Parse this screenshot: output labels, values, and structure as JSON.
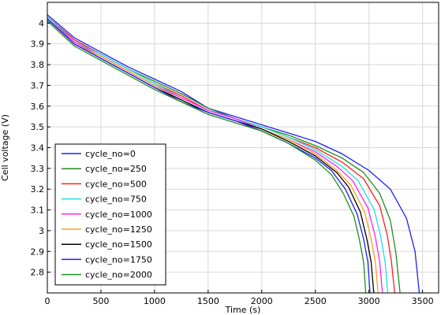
{
  "chart_data": {
    "type": "line",
    "xlabel": "Time (s)",
    "ylabel": "Cell voltage (V)",
    "xlim": [
      0,
      3650
    ],
    "ylim": [
      2.7,
      4.1
    ],
    "xticks": [
      0,
      500,
      1000,
      1500,
      2000,
      2500,
      3000,
      3500
    ],
    "yticks": [
      2.8,
      2.9,
      3.0,
      3.1,
      3.2,
      3.3,
      3.4,
      3.5,
      3.6,
      3.7,
      3.8,
      3.9,
      4.0
    ],
    "ytick_labels": [
      "2.8",
      "2.9",
      "3",
      "3.1",
      "3.2",
      "3.3",
      "3.4",
      "3.5",
      "3.6",
      "3.7",
      "3.8",
      "3.9",
      "4"
    ],
    "grid": true,
    "legend_position": "bottom-left",
    "series": [
      {
        "name": "cycle_no=0",
        "color": "#1f1fff",
        "x": [
          0,
          250,
          500,
          750,
          1000,
          1250,
          1500,
          1750,
          2000,
          2250,
          2500,
          2750,
          3000,
          3200,
          3350,
          3430,
          3470
        ],
        "y": [
          4.04,
          3.93,
          3.86,
          3.79,
          3.73,
          3.67,
          3.59,
          3.55,
          3.51,
          3.47,
          3.43,
          3.37,
          3.29,
          3.2,
          3.06,
          2.9,
          2.7
        ]
      },
      {
        "name": "cycle_no=250",
        "color": "#1e8f1e",
        "x": [
          0,
          250,
          500,
          750,
          1000,
          1250,
          1500,
          1750,
          2000,
          2250,
          2500,
          2750,
          2950,
          3100,
          3200,
          3250,
          3290
        ],
        "y": [
          4.03,
          3.92,
          3.85,
          3.78,
          3.72,
          3.66,
          3.59,
          3.54,
          3.5,
          3.46,
          3.41,
          3.35,
          3.28,
          3.18,
          3.05,
          2.9,
          2.7
        ]
      },
      {
        "name": "cycle_no=500",
        "color": "#ff1f1f",
        "x": [
          0,
          250,
          500,
          750,
          1000,
          1250,
          1500,
          1750,
          2000,
          2250,
          2500,
          2750,
          2950,
          3100,
          3170,
          3210,
          3240
        ],
        "y": [
          4.03,
          3.92,
          3.85,
          3.78,
          3.71,
          3.65,
          3.58,
          3.54,
          3.5,
          3.45,
          3.4,
          3.33,
          3.25,
          3.12,
          2.98,
          2.85,
          2.7
        ]
      },
      {
        "name": "cycle_no=750",
        "color": "#1fe0e0",
        "x": [
          0,
          250,
          500,
          750,
          1000,
          1250,
          1500,
          1750,
          2000,
          2250,
          2500,
          2750,
          2900,
          3050,
          3110,
          3150,
          3175
        ],
        "y": [
          4.03,
          3.91,
          3.85,
          3.78,
          3.71,
          3.64,
          3.58,
          3.54,
          3.5,
          3.45,
          3.39,
          3.31,
          3.24,
          3.1,
          2.97,
          2.85,
          2.7
        ]
      },
      {
        "name": "cycle_no=1000",
        "color": "#ff1fff",
        "x": [
          0,
          250,
          500,
          750,
          1000,
          1250,
          1500,
          1750,
          2000,
          2250,
          2500,
          2700,
          2850,
          2990,
          3060,
          3100,
          3125
        ],
        "y": [
          4.02,
          3.91,
          3.84,
          3.77,
          3.7,
          3.64,
          3.58,
          3.54,
          3.49,
          3.44,
          3.38,
          3.31,
          3.24,
          3.11,
          2.97,
          2.85,
          2.7
        ]
      },
      {
        "name": "cycle_no=1250",
        "color": "#ff9f1f",
        "x": [
          0,
          250,
          500,
          750,
          1000,
          1250,
          1500,
          1750,
          2000,
          2250,
          2500,
          2700,
          2830,
          2960,
          3020,
          3060,
          3085
        ],
        "y": [
          4.02,
          3.9,
          3.84,
          3.77,
          3.7,
          3.63,
          3.57,
          3.53,
          3.49,
          3.44,
          3.37,
          3.29,
          3.22,
          3.09,
          2.96,
          2.85,
          2.7
        ]
      },
      {
        "name": "cycle_no=1500",
        "color": "#000000",
        "x": [
          0,
          250,
          500,
          750,
          1000,
          1250,
          1500,
          1750,
          2000,
          2250,
          2500,
          2700,
          2810,
          2920,
          2980,
          3020,
          3045
        ],
        "y": [
          4.02,
          3.9,
          3.83,
          3.76,
          3.69,
          3.63,
          3.57,
          3.53,
          3.49,
          3.43,
          3.36,
          3.28,
          3.21,
          3.09,
          2.96,
          2.85,
          2.7
        ]
      },
      {
        "name": "cycle_no=1750",
        "color": "#1f1fff",
        "x": [
          0,
          250,
          500,
          750,
          1000,
          1250,
          1500,
          1750,
          2000,
          2250,
          2500,
          2650,
          2780,
          2890,
          2950,
          2990,
          3010
        ],
        "y": [
          4.02,
          3.9,
          3.83,
          3.76,
          3.69,
          3.62,
          3.57,
          3.53,
          3.48,
          3.42,
          3.35,
          3.29,
          3.2,
          3.08,
          2.96,
          2.85,
          2.7
        ]
      },
      {
        "name": "cycle_no=2000",
        "color": "#1e8f1e",
        "x": [
          0,
          250,
          500,
          750,
          1000,
          1250,
          1500,
          1750,
          2000,
          2250,
          2500,
          2650,
          2760,
          2860,
          2910,
          2950,
          2970
        ],
        "y": [
          4.01,
          3.89,
          3.82,
          3.75,
          3.68,
          3.62,
          3.56,
          3.52,
          3.48,
          3.42,
          3.34,
          3.27,
          3.18,
          3.07,
          2.96,
          2.85,
          2.7
        ]
      }
    ]
  }
}
